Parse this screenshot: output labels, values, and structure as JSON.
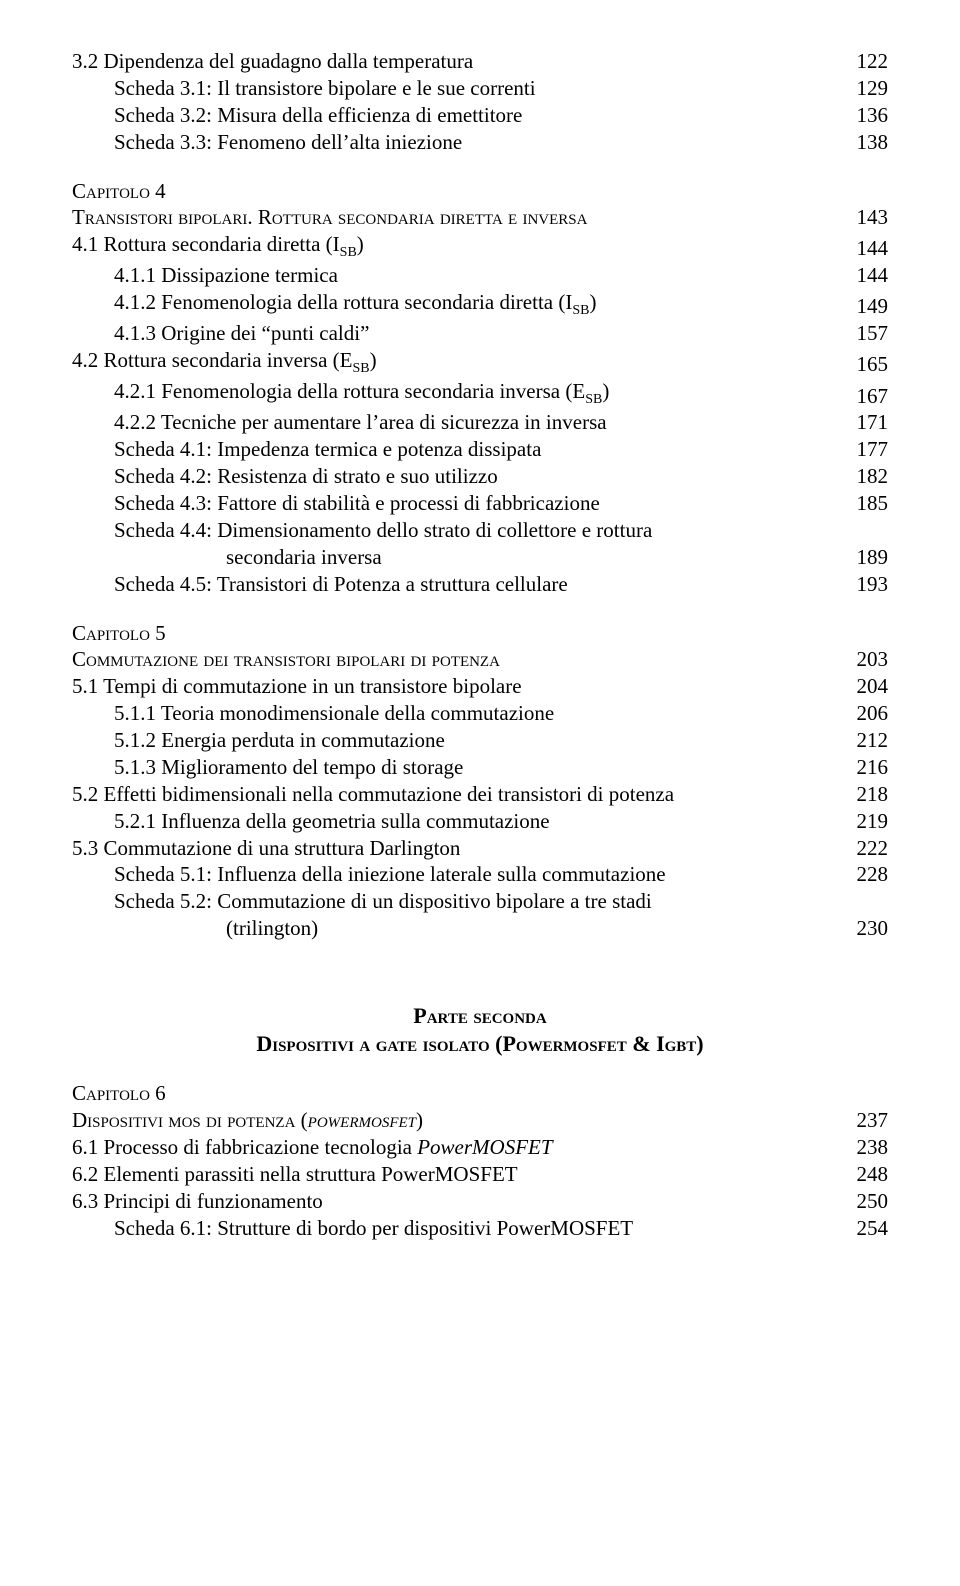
{
  "lines": [
    {
      "kind": "row",
      "indent": "ind-0",
      "label": "3.2  Dipendenza del guadagno dalla temperatura",
      "page": "122"
    },
    {
      "kind": "row",
      "indent": "ind-scheda",
      "label": "Scheda 3.1:  Il transistore bipolare e le sue correnti",
      "page": "129"
    },
    {
      "kind": "row",
      "indent": "ind-scheda",
      "label": "Scheda 3.2:  Misura della efficienza di emettitore",
      "page": "136"
    },
    {
      "kind": "row",
      "indent": "ind-scheda",
      "label": "Scheda 3.3:  Fenomeno dell’alta iniezione",
      "page": "138"
    },
    {
      "kind": "gap-block"
    },
    {
      "kind": "smallcaps",
      "indent": "ind-0",
      "label": "Capitolo 4"
    },
    {
      "kind": "row-smallcaps",
      "indent": "ind-0",
      "label": "Transistori bipolari. Rottura secondaria diretta e inversa",
      "page": "143"
    },
    {
      "kind": "row-sub",
      "indent": "ind-0",
      "label": "4.1  Rottura secondaria diretta (I",
      "sub": "SB",
      "after": ")",
      "page": "144"
    },
    {
      "kind": "row",
      "indent": "ind-sub",
      "label": "4.1.1   Dissipazione termica",
      "page": "144"
    },
    {
      "kind": "row-sub",
      "indent": "ind-sub",
      "label": "4.1.2   Fenomenologia della rottura secondaria diretta (I",
      "sub": "SB",
      "after": ")",
      "page": "149"
    },
    {
      "kind": "row",
      "indent": "ind-sub",
      "label": "4.1.3   Origine dei “punti caldi”",
      "page": "157"
    },
    {
      "kind": "row-sub",
      "indent": "ind-0",
      "label": "4.2  Rottura secondaria inversa (E",
      "sub": "SB",
      "after": ")",
      "page": "165"
    },
    {
      "kind": "row-sub",
      "indent": "ind-sub",
      "label": "4.2.1   Fenomenologia della rottura secondaria inversa (E",
      "sub": "SB",
      "after": ")",
      "page": "167"
    },
    {
      "kind": "row",
      "indent": "ind-sub",
      "label": "4.2.2   Tecniche per aumentare l’area di sicurezza in inversa",
      "page": "171"
    },
    {
      "kind": "row",
      "indent": "ind-scheda",
      "label": "Scheda 4.1:  Impedenza termica e potenza dissipata",
      "page": "177"
    },
    {
      "kind": "row",
      "indent": "ind-scheda",
      "label": "Scheda 4.2:  Resistenza di strato e suo utilizzo",
      "page": "182"
    },
    {
      "kind": "row",
      "indent": "ind-scheda",
      "label": "Scheda 4.3:  Fattore di stabilità e processi di fabbricazione",
      "page": "185"
    },
    {
      "kind": "row-hang",
      "indent": "ind-scheda",
      "line1": "Scheda 4.4:  Dimensionamento dello strato di collettore  e rottura",
      "line2": "secondaria inversa",
      "page": "189"
    },
    {
      "kind": "row",
      "indent": "ind-scheda",
      "label": "Scheda 4.5:  Transistori di Potenza a struttura cellulare",
      "page": "193"
    },
    {
      "kind": "gap-block"
    },
    {
      "kind": "smallcaps",
      "indent": "ind-0",
      "label": "Capitolo 5"
    },
    {
      "kind": "row-smallcaps",
      "indent": "ind-0",
      "label": "Commutazione dei transistori bipolari di potenza",
      "page": "203"
    },
    {
      "kind": "row",
      "indent": "ind-0",
      "label": "5.1  Tempi di commutazione in un transistore bipolare",
      "page": "204"
    },
    {
      "kind": "row",
      "indent": "ind-sub",
      "label": "5.1.1   Teoria monodimensionale della commutazione",
      "page": "206"
    },
    {
      "kind": "row",
      "indent": "ind-sub",
      "label": "5.1.2   Energia perduta in commutazione",
      "page": "212"
    },
    {
      "kind": "row",
      "indent": "ind-sub",
      "label": "5.1.3   Miglioramento del tempo di storage",
      "page": "216"
    },
    {
      "kind": "row",
      "indent": "ind-0",
      "label": "5.2  Effetti bidimensionali nella commutazione  dei transistori di potenza",
      "page": "218"
    },
    {
      "kind": "row",
      "indent": "ind-sub",
      "label": "5.2.1   Influenza della geometria sulla commutazione",
      "page": "219"
    },
    {
      "kind": "row",
      "indent": "ind-0",
      "label": "5.3  Commutazione di una struttura Darlington",
      "page": "222"
    },
    {
      "kind": "row",
      "indent": "ind-scheda",
      "label": "Scheda 5.1:  Influenza della iniezione laterale sulla commutazione",
      "page": "228"
    },
    {
      "kind": "row-hang",
      "indent": "ind-scheda",
      "line1": "Scheda 5.2:  Commutazione di un dispositivo bipolare  a tre stadi",
      "line2": "(trilington)",
      "page": "230"
    },
    {
      "kind": "gap-part"
    },
    {
      "kind": "part-title",
      "label": "Parte seconda"
    },
    {
      "kind": "part-subtitle",
      "label": "Dispositivi a gate isolato (Powermosfet & Igbt)"
    },
    {
      "kind": "gap-block"
    },
    {
      "kind": "smallcaps",
      "indent": "ind-0",
      "label": "Capitolo 6"
    },
    {
      "kind": "row-smallcaps-italic",
      "indent": "ind-0",
      "labelA": "Dispositivi mos di potenza (",
      "italic": "powermosfet",
      "labelB": ")",
      "page": "237"
    },
    {
      "kind": "row-italic-word",
      "indent": "ind-0",
      "pre": "6.1  Processo di fabbricazione tecnologia ",
      "italic": "PowerMOSFET",
      "post": "",
      "page": "238"
    },
    {
      "kind": "row",
      "indent": "ind-0",
      "label": "6.2  Elementi parassiti nella struttura PowerMOSFET",
      "page": "248"
    },
    {
      "kind": "row",
      "indent": "ind-0",
      "label": "6.3  Principi di funzionamento",
      "page": "250"
    },
    {
      "kind": "row",
      "indent": "ind-scheda",
      "label": "Scheda 6.1:  Strutture di bordo per dispositivi PowerMOSFET",
      "page": "254"
    }
  ]
}
